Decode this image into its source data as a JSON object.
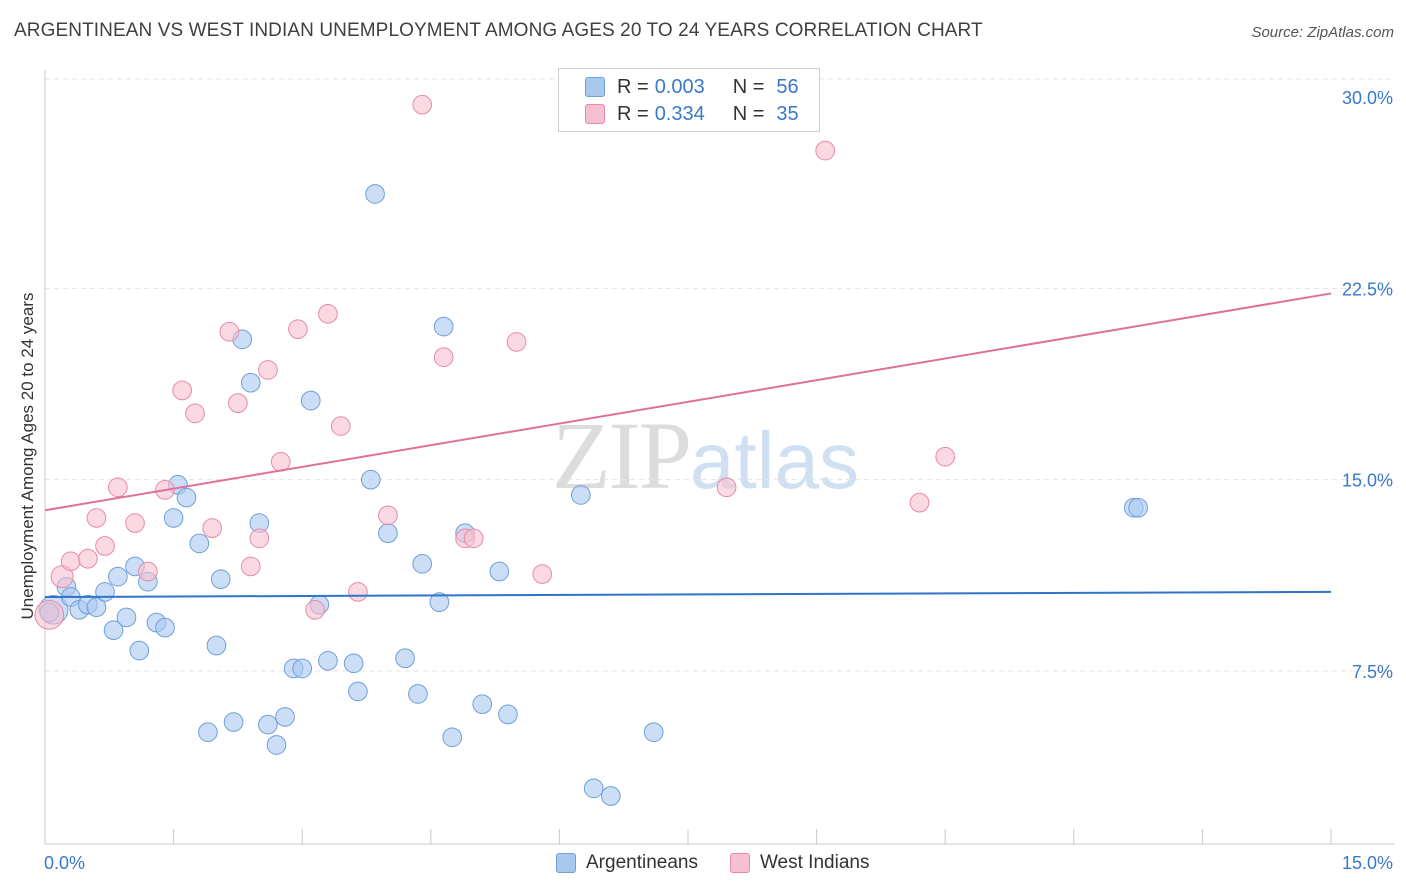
{
  "title": "ARGENTINEAN VS WEST INDIAN UNEMPLOYMENT AMONG AGES 20 TO 24 YEARS CORRELATION CHART",
  "source": "Source: ZipAtlas.com",
  "watermark": {
    "zip": "ZIP",
    "atlas": "atlas"
  },
  "legend": {
    "rows": [
      {
        "r_label": "R =",
        "r_value": "0.003",
        "n_label": "N =",
        "n_value": "56",
        "color": "#a9c8f0",
        "border": "#6f9fd8"
      },
      {
        "r_label": "R =",
        "r_value": "0.334",
        "n_label": "N =",
        "n_value": "35",
        "color": "#f7c0d0",
        "border": "#e88aa8"
      }
    ]
  },
  "bottom_legend": [
    {
      "label": "Argentineans",
      "color": "#a9c8f0",
      "border": "#6f9fd8"
    },
    {
      "label": "West Indians",
      "color": "#f7c0d0",
      "border": "#e88aa8"
    }
  ],
  "chart_data": {
    "type": "scatter",
    "title": "ARGENTINEAN VS WEST INDIAN UNEMPLOYMENT AMONG AGES 20 TO 24 YEARS CORRELATION CHART",
    "xlabel": "",
    "ylabel": "Unemployment Among Ages 20 to 24 years",
    "xlim": [
      0,
      15
    ],
    "ylim": [
      0,
      30.5
    ],
    "x_tick_labels": [
      "0.0%",
      "15.0%"
    ],
    "y_ticks": [
      7.5,
      15.0,
      22.5,
      30.0
    ],
    "y_tick_labels": [
      "7.5%",
      "15.0%",
      "22.5%",
      "30.0%"
    ],
    "grid": "horizontal dashed",
    "series": [
      {
        "name": "Argentineans",
        "color": "#a9c8f0",
        "stroke": "#6f9fd8",
        "trend": {
          "color": "#2f74c8",
          "x": [
            0,
            15
          ],
          "y": [
            10.4,
            10.6
          ]
        },
        "points": [
          [
            0.1,
            9.9,
            16
          ],
          [
            0.25,
            10.8,
            10
          ],
          [
            0.3,
            10.4,
            10
          ],
          [
            0.4,
            9.9,
            10
          ],
          [
            0.5,
            10.1,
            10
          ],
          [
            0.6,
            10.0,
            10
          ],
          [
            0.7,
            10.6,
            10
          ],
          [
            0.8,
            9.1,
            10
          ],
          [
            0.85,
            11.2,
            10
          ],
          [
            0.95,
            9.6,
            10
          ],
          [
            1.05,
            11.6,
            10
          ],
          [
            1.1,
            8.3,
            10
          ],
          [
            1.2,
            11.0,
            10
          ],
          [
            1.3,
            9.4,
            10
          ],
          [
            1.4,
            9.2,
            10
          ],
          [
            1.5,
            13.5,
            10
          ],
          [
            1.55,
            14.8,
            10
          ],
          [
            1.65,
            14.3,
            10
          ],
          [
            1.8,
            12.5,
            10
          ],
          [
            1.9,
            5.1,
            10
          ],
          [
            2.0,
            8.5,
            10
          ],
          [
            2.05,
            11.1,
            10
          ],
          [
            2.2,
            5.5,
            10
          ],
          [
            2.3,
            20.5,
            10
          ],
          [
            2.4,
            18.8,
            10
          ],
          [
            2.5,
            13.3,
            10
          ],
          [
            2.6,
            5.4,
            10
          ],
          [
            2.7,
            4.6,
            10
          ],
          [
            2.8,
            5.7,
            10
          ],
          [
            2.9,
            7.6,
            10
          ],
          [
            3.0,
            7.6,
            10
          ],
          [
            3.1,
            18.1,
            10
          ],
          [
            3.2,
            10.1,
            10
          ],
          [
            3.3,
            7.9,
            10
          ],
          [
            3.6,
            7.8,
            10
          ],
          [
            3.65,
            6.7,
            10
          ],
          [
            3.8,
            15.0,
            10
          ],
          [
            3.85,
            26.2,
            10
          ],
          [
            4.0,
            12.9,
            10
          ],
          [
            4.2,
            8.0,
            10
          ],
          [
            4.35,
            6.6,
            10
          ],
          [
            4.4,
            11.7,
            10
          ],
          [
            4.6,
            10.2,
            10
          ],
          [
            4.65,
            21.0,
            10
          ],
          [
            4.75,
            4.9,
            10
          ],
          [
            4.9,
            12.9,
            10
          ],
          [
            5.1,
            6.2,
            10
          ],
          [
            5.3,
            11.4,
            10
          ],
          [
            5.4,
            5.8,
            10
          ],
          [
            6.25,
            14.4,
            10
          ],
          [
            6.4,
            2.9,
            10
          ],
          [
            6.6,
            2.6,
            10
          ],
          [
            7.1,
            5.1,
            10
          ],
          [
            12.7,
            13.9,
            10
          ],
          [
            12.75,
            13.9,
            10
          ],
          [
            0.05,
            9.8,
            10
          ]
        ]
      },
      {
        "name": "West Indians",
        "color": "#f7c0d0",
        "stroke": "#e88aa8",
        "trend": {
          "color": "#e0709a",
          "x": [
            0,
            15
          ],
          "y": [
            13.8,
            22.3
          ]
        },
        "points": [
          [
            0.05,
            9.7,
            16
          ],
          [
            0.2,
            11.2,
            12
          ],
          [
            0.3,
            11.8,
            10
          ],
          [
            0.5,
            11.9,
            10
          ],
          [
            0.6,
            13.5,
            10
          ],
          [
            0.7,
            12.4,
            10
          ],
          [
            0.85,
            14.7,
            10
          ],
          [
            1.05,
            13.3,
            10
          ],
          [
            1.2,
            11.4,
            10
          ],
          [
            1.4,
            14.6,
            10
          ],
          [
            1.6,
            18.5,
            10
          ],
          [
            1.75,
            17.6,
            10
          ],
          [
            1.95,
            13.1,
            10
          ],
          [
            2.15,
            20.8,
            10
          ],
          [
            2.25,
            18.0,
            10
          ],
          [
            2.4,
            11.6,
            10
          ],
          [
            2.5,
            12.7,
            10
          ],
          [
            2.6,
            19.3,
            10
          ],
          [
            2.75,
            15.7,
            10
          ],
          [
            2.95,
            20.9,
            10
          ],
          [
            3.15,
            9.9,
            10
          ],
          [
            3.3,
            21.5,
            10
          ],
          [
            3.45,
            17.1,
            10
          ],
          [
            3.65,
            10.6,
            10
          ],
          [
            4.0,
            13.6,
            10
          ],
          [
            4.4,
            29.7,
            10
          ],
          [
            4.65,
            19.8,
            10
          ],
          [
            4.9,
            12.7,
            10
          ],
          [
            5.0,
            12.7,
            10
          ],
          [
            5.5,
            20.4,
            10
          ],
          [
            5.8,
            11.3,
            10
          ],
          [
            7.95,
            14.7,
            10
          ],
          [
            9.1,
            27.9,
            10
          ],
          [
            10.2,
            14.1,
            10
          ],
          [
            10.5,
            15.9,
            10
          ]
        ]
      }
    ]
  }
}
